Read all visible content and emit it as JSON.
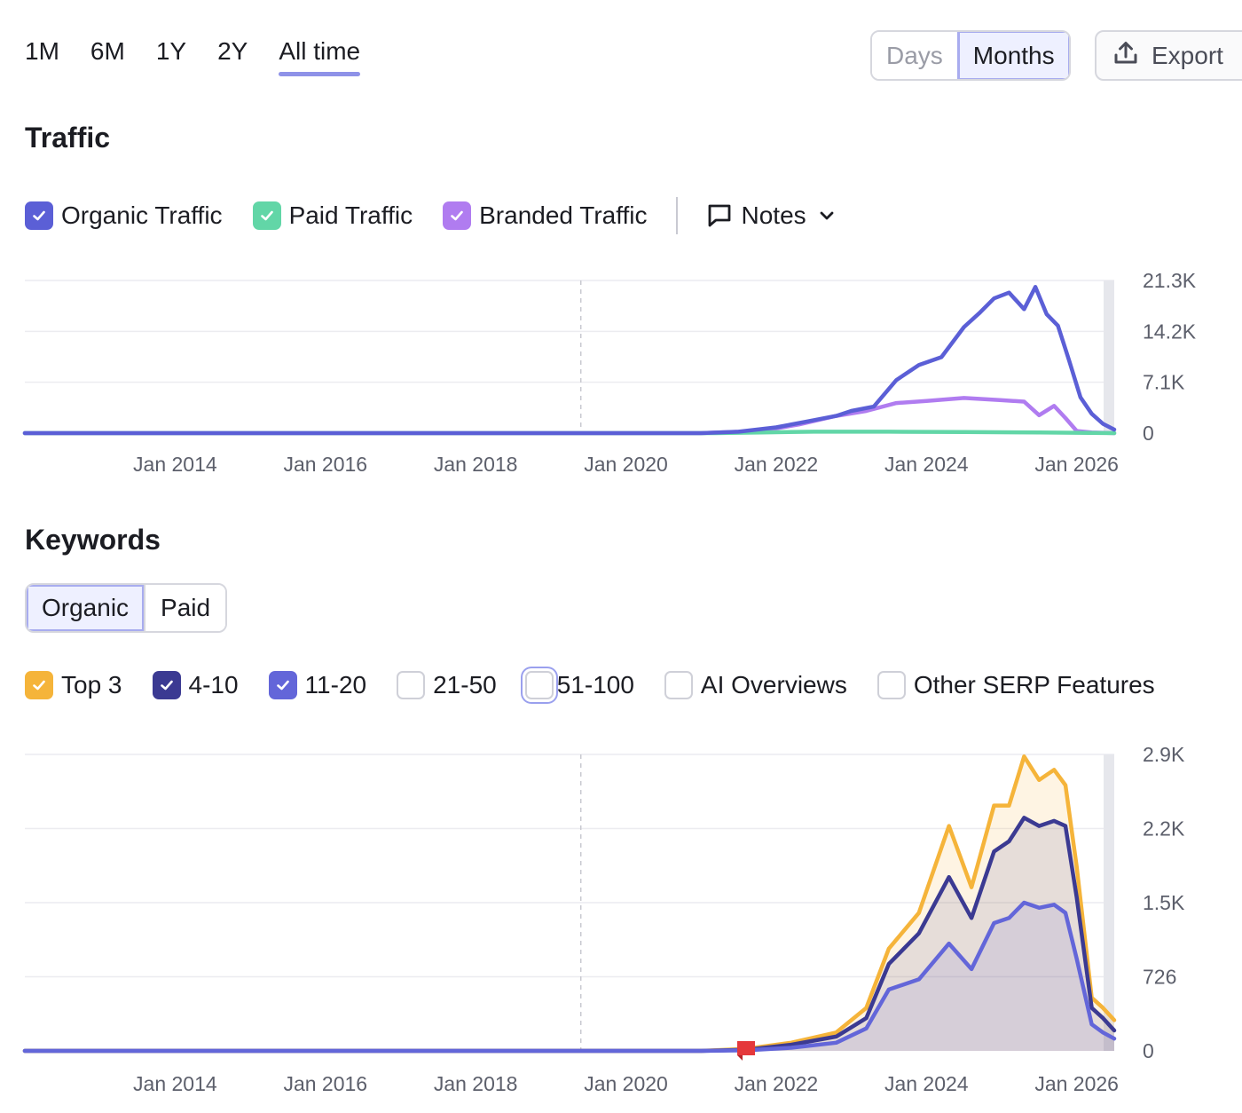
{
  "toolbar": {
    "periods": [
      "1M",
      "6M",
      "1Y",
      "2Y",
      "All time"
    ],
    "active_period": "All time",
    "granularity": [
      "Days",
      "Months"
    ],
    "active_granularity": "Months",
    "export_label": "Export"
  },
  "traffic": {
    "title": "Traffic",
    "legend": [
      {
        "label": "Organic Traffic",
        "checked": true,
        "color": "#5b5fd6"
      },
      {
        "label": "Paid Traffic",
        "checked": true,
        "color": "#62d6a7"
      },
      {
        "label": "Branded Traffic",
        "checked": true,
        "color": "#b07cf0"
      }
    ],
    "notes_label": "Notes"
  },
  "keywords": {
    "title": "Keywords",
    "tabs": [
      "Organic",
      "Paid"
    ],
    "active_tab": "Organic",
    "legend": [
      {
        "label": "Top 3",
        "checked": true,
        "color": "#f5b43a"
      },
      {
        "label": "4-10",
        "checked": true,
        "color": "#3b3a92"
      },
      {
        "label": "11-20",
        "checked": true,
        "color": "#6366d9"
      },
      {
        "label": "21-50",
        "checked": false
      },
      {
        "label": "51-100",
        "checked": false
      },
      {
        "label": "AI Overviews",
        "checked": false
      },
      {
        "label": "Other SERP Features",
        "checked": false
      }
    ]
  },
  "chart_data": [
    {
      "type": "line",
      "x_labels": [
        "Jan 2014",
        "Jan 2016",
        "Jan 2018",
        "Jan 2020",
        "Jan 2022",
        "Jan 2024",
        "Jan 2026"
      ],
      "y_ticks": [
        "21.3K",
        "14.2K",
        "7.1K",
        "0"
      ],
      "ylim": [
        0,
        21300
      ],
      "xlim": [
        2012.0,
        2026.5
      ],
      "grid": true,
      "marker_year": 2019.4,
      "series": [
        {
          "name": "Organic Traffic",
          "color": "#5b5fd6",
          "x": [
            2012.0,
            2021.0,
            2021.5,
            2022.0,
            2022.4,
            2022.8,
            2023.0,
            2023.3,
            2023.6,
            2023.9,
            2024.2,
            2024.5,
            2024.7,
            2024.9,
            2025.1,
            2025.3,
            2025.45,
            2025.6,
            2025.75,
            2025.9,
            2026.05,
            2026.2,
            2026.35,
            2026.5
          ],
          "values": [
            0,
            0,
            200,
            800,
            1600,
            2400,
            3100,
            3700,
            7400,
            9500,
            10600,
            14800,
            16700,
            18800,
            19600,
            17300,
            20400,
            16600,
            15000,
            10100,
            5000,
            2700,
            1300,
            500
          ]
        },
        {
          "name": "Paid Traffic",
          "color": "#62d6a7",
          "x": [
            2012.0,
            2021.2,
            2021.8,
            2022.5,
            2023.5,
            2024.5,
            2025.5,
            2026.5
          ],
          "values": [
            0,
            0,
            100,
            200,
            200,
            150,
            100,
            0
          ]
        },
        {
          "name": "Branded Traffic",
          "color": "#b07cf0",
          "x": [
            2012.0,
            2021.0,
            2021.8,
            2022.3,
            2022.8,
            2023.2,
            2023.6,
            2024.0,
            2024.5,
            2025.0,
            2025.3,
            2025.5,
            2025.7,
            2025.85,
            2026.0,
            2026.2,
            2026.5
          ],
          "values": [
            0,
            0,
            300,
            1200,
            2400,
            3100,
            4200,
            4500,
            4900,
            4600,
            4400,
            2500,
            3800,
            2100,
            300,
            100,
            0
          ]
        }
      ]
    },
    {
      "type": "area",
      "x_labels": [
        "Jan 2014",
        "Jan 2016",
        "Jan 2018",
        "Jan 2020",
        "Jan 2022",
        "Jan 2024",
        "Jan 2026"
      ],
      "y_ticks": [
        "2.9K",
        "2.2K",
        "1.5K",
        "726",
        "0"
      ],
      "ylim": [
        0,
        2900
      ],
      "xlim": [
        2012.0,
        2026.5
      ],
      "grid": true,
      "marker_year": 2019.4,
      "annotation_flag_year": 2021.6,
      "series": [
        {
          "name": "Top 3",
          "color": "#f5b43a",
          "x": [
            2012.0,
            2021.0,
            2021.6,
            2022.2,
            2022.8,
            2023.2,
            2023.5,
            2023.9,
            2024.3,
            2024.6,
            2024.9,
            2025.1,
            2025.3,
            2025.5,
            2025.7,
            2025.85,
            2026.0,
            2026.2,
            2026.35,
            2026.5
          ],
          "values": [
            0,
            0,
            20,
            80,
            180,
            420,
            1000,
            1350,
            2200,
            1600,
            2400,
            2400,
            2880,
            2650,
            2750,
            2600,
            1800,
            520,
            420,
            300
          ]
        },
        {
          "name": "4-10",
          "color": "#3b3a92",
          "x": [
            2012.0,
            2021.0,
            2021.6,
            2022.2,
            2022.8,
            2023.2,
            2023.5,
            2023.9,
            2024.3,
            2024.6,
            2024.9,
            2025.1,
            2025.3,
            2025.5,
            2025.7,
            2025.85,
            2026.0,
            2026.2,
            2026.35,
            2026.5
          ],
          "values": [
            0,
            0,
            10,
            60,
            140,
            320,
            850,
            1150,
            1700,
            1300,
            1950,
            2050,
            2280,
            2200,
            2250,
            2200,
            1500,
            420,
            320,
            200
          ]
        },
        {
          "name": "11-20",
          "color": "#6366d9",
          "x": [
            2012.0,
            2021.0,
            2021.6,
            2022.2,
            2022.8,
            2023.2,
            2023.5,
            2023.9,
            2024.3,
            2024.6,
            2024.9,
            2025.1,
            2025.3,
            2025.5,
            2025.7,
            2025.85,
            2026.0,
            2026.2,
            2026.35,
            2026.5
          ],
          "values": [
            0,
            0,
            5,
            30,
            80,
            220,
            600,
            700,
            1050,
            800,
            1250,
            1300,
            1450,
            1400,
            1430,
            1350,
            900,
            260,
            180,
            120
          ]
        }
      ]
    }
  ]
}
